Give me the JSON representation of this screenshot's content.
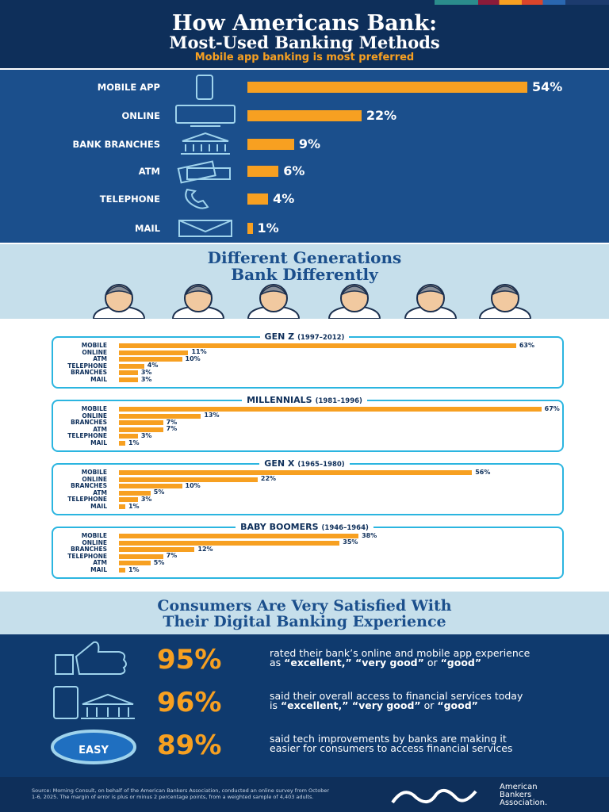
{
  "header": {
    "title_lines": [
      "How Americans Bank:",
      "Most-Used Banking Methods"
    ],
    "subtitle": "Mobile app banking is most preferred"
  },
  "chart_data": [
    {
      "type": "bar",
      "orientation": "horizontal",
      "color": "#f7a021",
      "categories": [
        "MOBILE APP",
        "ONLINE",
        "BANK BRANCHES",
        "ATM",
        "TELEPHONE",
        "MAIL"
      ],
      "values": [
        54,
        22,
        9,
        6,
        4,
        1
      ],
      "value_labels": [
        "54%",
        "22%",
        "9%",
        "6%",
        "4%",
        "1%"
      ]
    },
    {
      "type": "bar",
      "orientation": "horizontal",
      "color": "#f7a021",
      "title": "GEN Z",
      "subtitle": "(1997–2012)",
      "categories": [
        "MOBILE",
        "ONLINE",
        "ATM",
        "TELEPHONE",
        "BRANCHES",
        "MAIL"
      ],
      "values": [
        63,
        11,
        10,
        4,
        3,
        3
      ],
      "value_labels": [
        "63%",
        "11%",
        "10%",
        "4%",
        "3%",
        "3%"
      ]
    },
    {
      "type": "bar",
      "orientation": "horizontal",
      "color": "#f7a021",
      "title": "MILLENNIALS",
      "subtitle": "(1981–1996)",
      "categories": [
        "MOBILE",
        "ONLINE",
        "BRANCHES",
        "ATM",
        "TELEPHONE",
        "MAIL"
      ],
      "values": [
        67,
        13,
        7,
        7,
        3,
        1
      ],
      "value_labels": [
        "67%",
        "13%",
        "7%",
        "7%",
        "3%",
        "1%"
      ]
    },
    {
      "type": "bar",
      "orientation": "horizontal",
      "color": "#f7a021",
      "title": "GEN X",
      "subtitle": "(1965–1980)",
      "categories": [
        "MOBILE",
        "ONLINE",
        "BRANCHES",
        "ATM",
        "TELEPHONE",
        "MAIL"
      ],
      "values": [
        56,
        22,
        10,
        5,
        3,
        1
      ],
      "value_labels": [
        "56%",
        "22%",
        "10%",
        "5%",
        "3%",
        "1%"
      ]
    },
    {
      "type": "bar",
      "orientation": "horizontal",
      "color": "#f7a021",
      "title": "BABY BOOMERS",
      "subtitle": "(1946–1964)",
      "categories": [
        "MOBILE",
        "ONLINE",
        "BRANCHES",
        "TELEPHONE",
        "ATM",
        "MAIL"
      ],
      "values": [
        38,
        35,
        12,
        7,
        5,
        1
      ],
      "value_labels": [
        "38%",
        "35%",
        "12%",
        "7%",
        "5%",
        "1%"
      ]
    }
  ],
  "generations": {
    "title_lines": [
      "Different Generations",
      "Bank Differently"
    ]
  },
  "satisfaction": {
    "title_lines": [
      "Consumers Are Very Satisfied With",
      "Their Digital Banking Experience"
    ],
    "statements": [
      {
        "percent": "95%",
        "segments": [
          {
            "text": "rated their bank’s online and mobile app experience as ",
            "bold": false
          },
          {
            "text": "“excellent,” “very good”",
            "bold": true
          },
          {
            "text": " or ",
            "bold": false
          },
          {
            "text": "“good”",
            "bold": true
          }
        ]
      },
      {
        "percent": "96%",
        "segments": [
          {
            "text": "said their overall access to financial services today is ",
            "bold": false
          },
          {
            "text": "“excellent,” “very good”",
            "bold": true
          },
          {
            "text": " or ",
            "bold": false
          },
          {
            "text": "“good”",
            "bold": true
          }
        ]
      },
      {
        "percent": "89%",
        "badge": "EASY",
        "segments": [
          {
            "text": "said tech improvements by banks are making it easier for consumers to access financial services",
            "bold": false
          }
        ]
      }
    ]
  },
  "footer": {
    "source": "Source: Morning Consult, on behalf of the American Bankers Association, conducted an online survey from October 1-6, 2025. The margin of error is plus or minus 2 percentage points, from a weighted sample of 4,403 adults.",
    "logo_lines": [
      "American",
      "Bankers",
      "Association."
    ]
  }
}
